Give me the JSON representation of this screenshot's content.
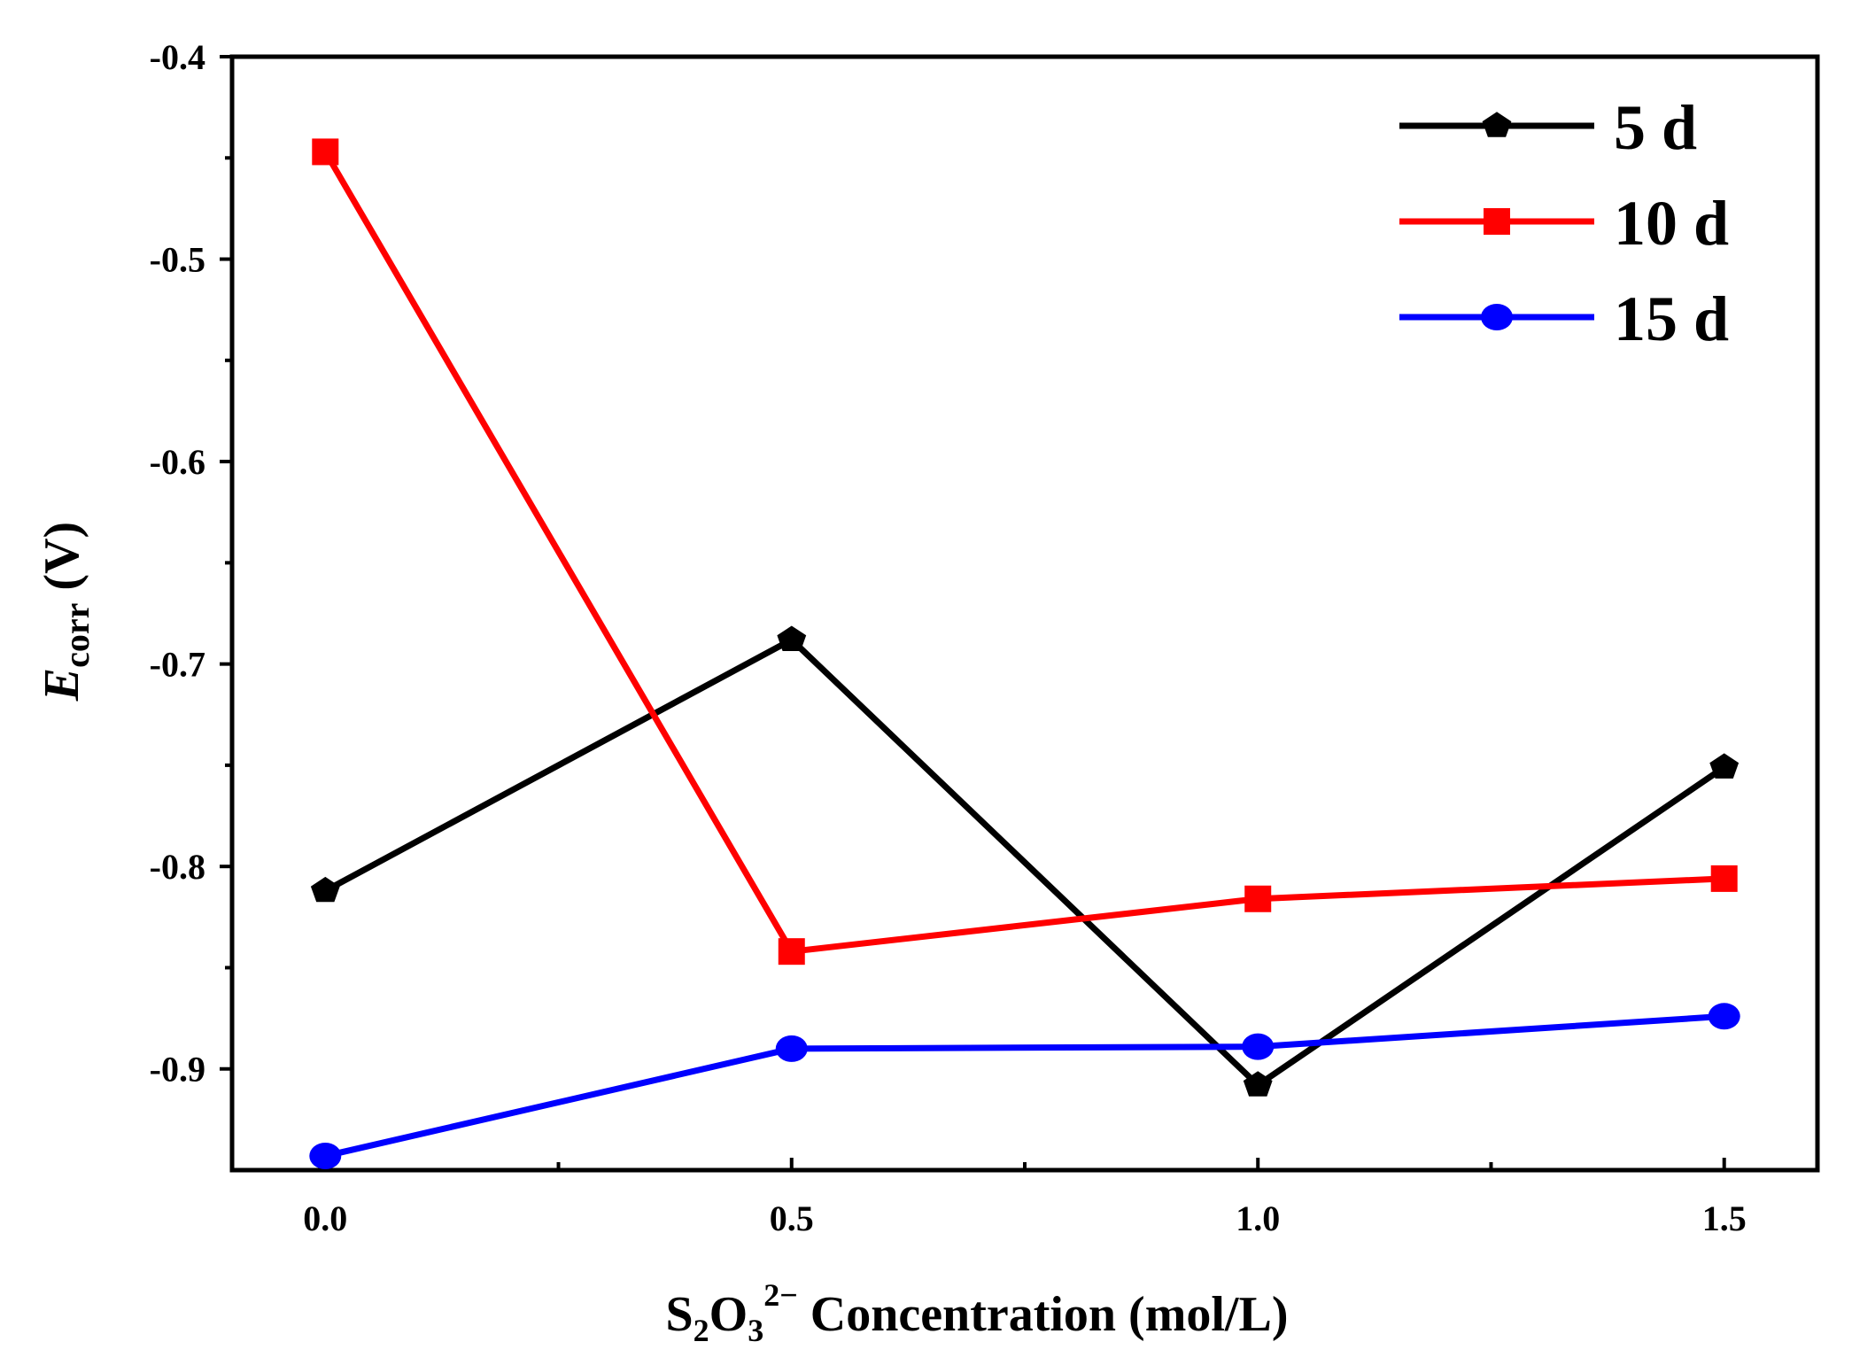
{
  "chart_data": {
    "type": "line",
    "x": [
      0.0,
      0.5,
      1.0,
      1.5
    ],
    "x_tick_labels": [
      "0.0",
      "0.5",
      "1.0",
      "1.5"
    ],
    "y_tick_labels": [
      "-0.4",
      "-0.5",
      "-0.6",
      "-0.7",
      "-0.8",
      "-0.9"
    ],
    "y_ticks": [
      -0.4,
      -0.5,
      -0.6,
      -0.7,
      -0.8,
      -0.9
    ],
    "xlim": [
      -0.1,
      1.6
    ],
    "ylim": [
      -0.95,
      -0.4
    ],
    "xlabel": {
      "main": "S",
      "sub1": "2",
      "main2": "O",
      "sub2": "3",
      "sup": "2−",
      "rest": " Concentration (mol/L)"
    },
    "ylabel": {
      "main": "E",
      "sub": "corr",
      "rest": " (V)"
    },
    "grid": false,
    "legend_position": "top-right",
    "series": [
      {
        "name": "5 d",
        "color": "#000000",
        "marker": "pentagon",
        "values": [
          -0.812,
          -0.688,
          -0.908,
          -0.751
        ]
      },
      {
        "name": "10 d",
        "color": "#ff0000",
        "marker": "square",
        "values": [
          -0.447,
          -0.842,
          -0.816,
          -0.806
        ]
      },
      {
        "name": "15 d",
        "color": "#0000ff",
        "marker": "circle",
        "values": [
          -0.943,
          -0.89,
          -0.889,
          -0.874
        ]
      }
    ]
  }
}
